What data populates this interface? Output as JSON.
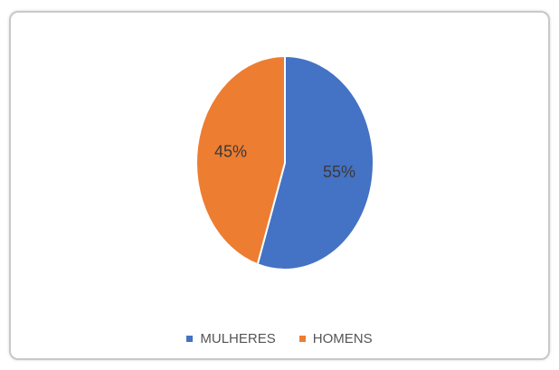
{
  "chart_data": {
    "type": "pie",
    "title": "",
    "slices": [
      {
        "label": "MULHERES",
        "value": 55,
        "display": "55%",
        "color": "#4472C4"
      },
      {
        "label": "HOMENS",
        "value": 45,
        "display": "45%",
        "color": "#ED7D31"
      }
    ],
    "legend": {
      "position": "bottom"
    },
    "data_label_color": "#3a3a3a"
  }
}
